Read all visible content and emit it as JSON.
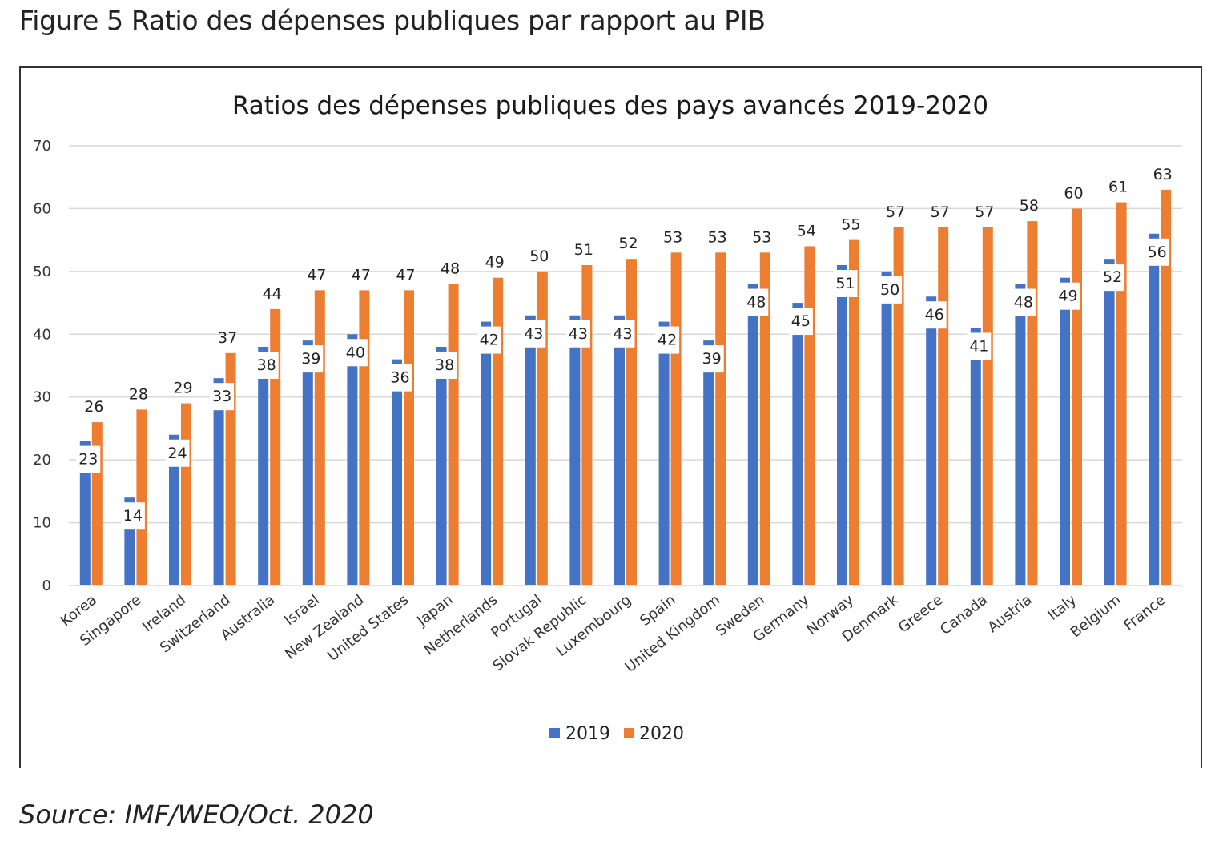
{
  "figure_caption": "Figure 5 Ratio des dépenses publiques par rapport au PIB",
  "source": "Source: IMF/WEO/Oct. 2020",
  "colors": {
    "series_2019": "#4472C4",
    "series_2020": "#ED7D31",
    "grid": "#D9D9D9"
  },
  "chart_data": {
    "type": "bar",
    "title": "Ratios des dépenses publiques des pays avancés 2019-2020",
    "xlabel": "",
    "ylabel": "",
    "ylim": [
      0,
      70
    ],
    "yticks": [
      0,
      10,
      20,
      30,
      40,
      50,
      60,
      70
    ],
    "grid": true,
    "legend_position": "bottom",
    "categories": [
      "Korea",
      "Singapore",
      "Ireland",
      "Switzerland",
      "Australia",
      "Israel",
      "New Zealand",
      "United States",
      "Japan",
      "Netherlands",
      "Portugal",
      "Slovak Republic",
      "Luxembourg",
      "Spain",
      "United Kingdom",
      "Sweden",
      "Germany",
      "Norway",
      "Denmark",
      "Greece",
      "Canada",
      "Austria",
      "Italy",
      "Belgium",
      "France"
    ],
    "series": [
      {
        "name": "2019",
        "values": [
          23,
          14,
          24,
          33,
          38,
          39,
          40,
          36,
          38,
          42,
          43,
          43,
          43,
          42,
          39,
          48,
          45,
          51,
          50,
          46,
          41,
          48,
          49,
          52,
          56
        ]
      },
      {
        "name": "2020",
        "values": [
          26,
          28,
          29,
          37,
          44,
          47,
          47,
          47,
          48,
          49,
          50,
          51,
          52,
          53,
          53,
          53,
          54,
          55,
          57,
          57,
          57,
          58,
          60,
          61,
          63
        ]
      }
    ]
  }
}
